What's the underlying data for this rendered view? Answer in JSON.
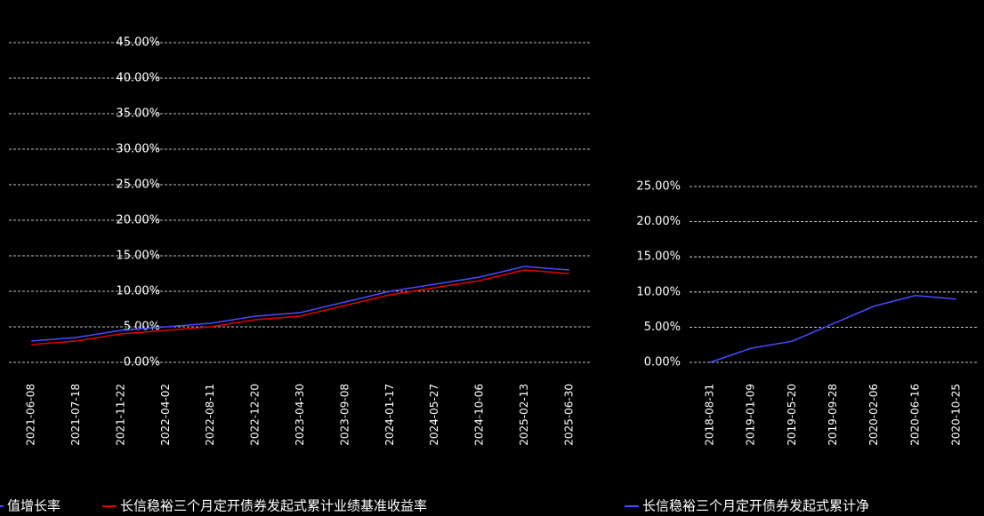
{
  "chart_data": [
    {
      "type": "line",
      "categories": [
        "2021-06-08",
        "2021-07-18",
        "2021-11-22",
        "2022-04-02",
        "2022-08-11",
        "2022-12-20",
        "2023-04-30",
        "2023-09-08",
        "2024-01-17",
        "2024-05-27",
        "2024-10-06",
        "2025-02-13",
        "2025-06-30"
      ],
      "series": [
        {
          "name": "值增长率",
          "color": "#4a4aff",
          "values": [
            3.0,
            3.5,
            4.5,
            5.0,
            5.5,
            6.5,
            7.0,
            8.5,
            10.0,
            11.0,
            12.0,
            13.5,
            13.0
          ]
        },
        {
          "name": "长信稳裕三个月定开债券发起式累计业绩基准收益率",
          "color": "#e00000",
          "values": [
            2.5,
            3.0,
            4.0,
            4.5,
            5.0,
            6.0,
            6.5,
            8.0,
            9.5,
            10.5,
            11.5,
            13.0,
            12.5
          ]
        }
      ],
      "ylim": [
        0,
        45
      ],
      "yticks": [
        {
          "value": 0,
          "label": "0.00%"
        },
        {
          "value": 5,
          "label": "5.00%"
        },
        {
          "value": 10,
          "label": "10.00%"
        },
        {
          "value": 15,
          "label": "15.00%"
        },
        {
          "value": 20,
          "label": "20.00%"
        },
        {
          "value": 25,
          "label": "25.00%"
        },
        {
          "value": 30,
          "label": "30.00%"
        },
        {
          "value": 35,
          "label": "35.00%"
        },
        {
          "value": 40,
          "label": "40.00%"
        },
        {
          "value": 45,
          "label": "45.00%"
        }
      ],
      "grid": true
    },
    {
      "type": "line",
      "categories": [
        "2018-08-31",
        "2019-01-09",
        "2019-05-20",
        "2019-09-28",
        "2020-02-06",
        "2020-06-16",
        "2020-10-25"
      ],
      "series": [
        {
          "name": "长信稳裕三个月定开债券发起式累计净",
          "color": "#4a4aff",
          "values": [
            0,
            2.0,
            3.0,
            5.5,
            8.0,
            9.5,
            9.0
          ]
        }
      ],
      "ylim": [
        0,
        25
      ],
      "yticks": [
        {
          "value": 0,
          "label": "0.00%"
        },
        {
          "value": 5,
          "label": "5.00%"
        },
        {
          "value": 10,
          "label": "10.00%"
        },
        {
          "value": 15,
          "label": "15.00%"
        },
        {
          "value": 20,
          "label": "20.00%"
        },
        {
          "value": 25,
          "label": "25.00%"
        }
      ],
      "grid": true
    }
  ]
}
